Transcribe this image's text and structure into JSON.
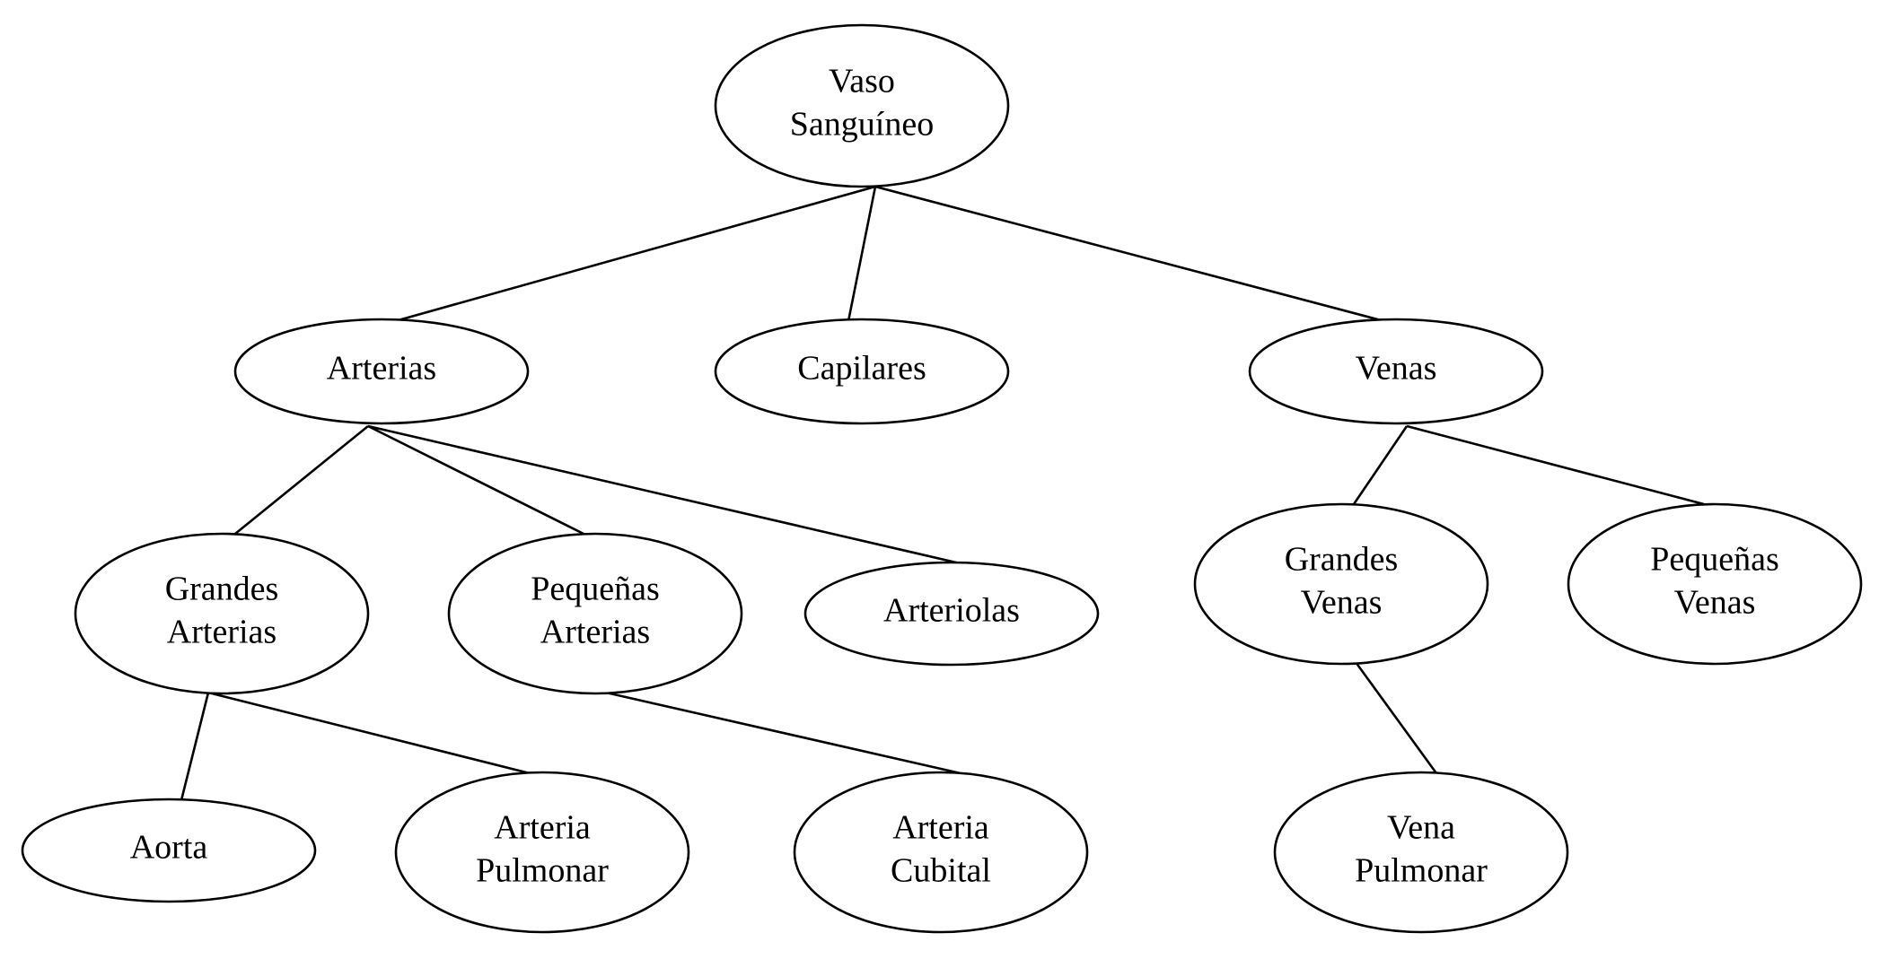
{
  "nodes": {
    "vaso": {
      "lines": [
        "Vaso",
        "Sanguíneo"
      ]
    },
    "arterias": {
      "lines": [
        "Arterias"
      ]
    },
    "capilares": {
      "lines": [
        "Capilares"
      ]
    },
    "venas": {
      "lines": [
        "Venas"
      ]
    },
    "grandes_arterias": {
      "lines": [
        "Grandes",
        "Arterias"
      ]
    },
    "pequenas_arterias": {
      "lines": [
        "Pequeñas",
        "Arterias"
      ]
    },
    "arteriolas": {
      "lines": [
        "Arteriolas"
      ]
    },
    "grandes_venas": {
      "lines": [
        "Grandes",
        "Venas"
      ]
    },
    "pequenas_venas": {
      "lines": [
        "Pequeñas",
        "Venas"
      ]
    },
    "aorta": {
      "lines": [
        "Aorta"
      ]
    },
    "arteria_pulmonar": {
      "lines": [
        "Arteria",
        "Pulmonar"
      ]
    },
    "arteria_cubital": {
      "lines": [
        "Arteria",
        "Cubital"
      ]
    },
    "vena_pulmonar": {
      "lines": [
        "Vena",
        "Pulmonar"
      ]
    }
  },
  "edges": [
    [
      "vaso",
      "arterias"
    ],
    [
      "vaso",
      "capilares"
    ],
    [
      "vaso",
      "venas"
    ],
    [
      "arterias",
      "grandes_arterias"
    ],
    [
      "arterias",
      "pequenas_arterias"
    ],
    [
      "arterias",
      "arteriolas"
    ],
    [
      "venas",
      "grandes_venas"
    ],
    [
      "venas",
      "pequenas_venas"
    ],
    [
      "grandes_arterias",
      "aorta"
    ],
    [
      "grandes_arterias",
      "arteria_pulmonar"
    ],
    [
      "pequenas_arterias",
      "arteria_cubital"
    ],
    [
      "grandes_venas",
      "vena_pulmonar"
    ]
  ]
}
